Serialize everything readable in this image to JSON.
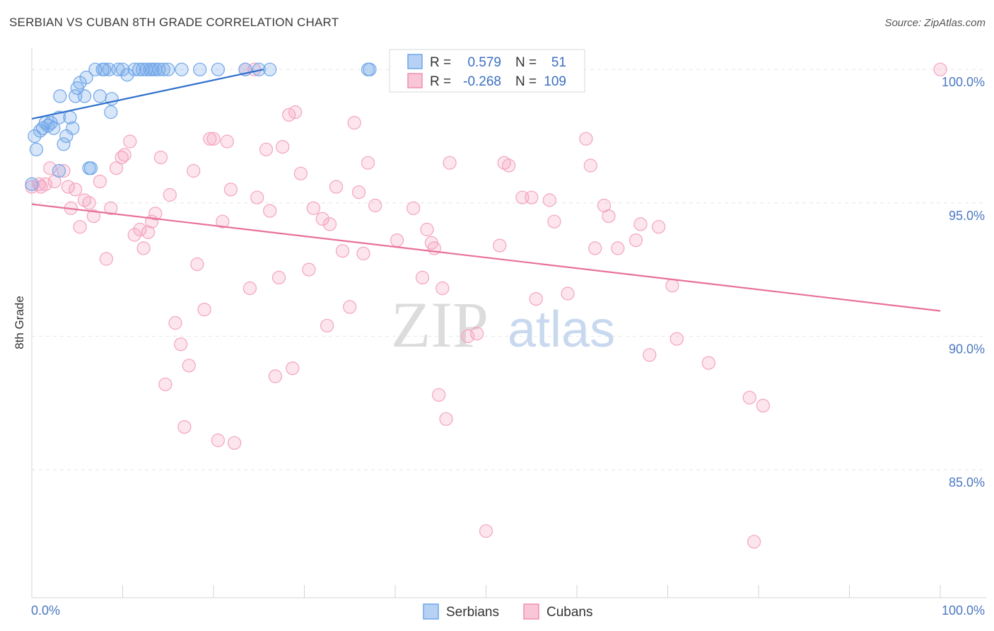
{
  "title": "SERBIAN VS CUBAN 8TH GRADE CORRELATION CHART",
  "source": "Source: ZipAtlas.com",
  "watermark": {
    "zip": "ZIP",
    "atlas": "atlas"
  },
  "legend": {
    "r_label": "R =",
    "n_label": "N =",
    "items": [
      {
        "name": "Serbians",
        "r": "0.579",
        "n": "51",
        "color": "#6fa6e8"
      },
      {
        "name": "Cubans",
        "r": "-0.268",
        "n": "109",
        "color": "#f08fb0"
      }
    ]
  },
  "chart_data": {
    "type": "scatter",
    "title": "SERBIAN VS CUBAN 8TH GRADE CORRELATION CHART",
    "xlabel": "",
    "ylabel": "8th Grade",
    "xlim": [
      0,
      100
    ],
    "ylim": [
      80.2,
      100.8
    ],
    "x_tick_labels": [
      "0.0%",
      "100.0%"
    ],
    "y_ticks": [
      85,
      90,
      95,
      100
    ],
    "y_tick_labels": [
      "85.0%",
      "90.0%",
      "95.0%",
      "100.0%"
    ],
    "grid": true,
    "series": [
      {
        "name": "Serbians",
        "color": "#6fa6e8",
        "line_color": "#2e6fcc",
        "trend": {
          "x": [
            0,
            25.5
          ],
          "y": [
            98.15,
            100.0
          ]
        },
        "points": [
          [
            0.3,
            97.5
          ],
          [
            0.5,
            97.0
          ],
          [
            0.9,
            97.7
          ],
          [
            1.2,
            97.8
          ],
          [
            1.5,
            98.0
          ],
          [
            1.8,
            97.9
          ],
          [
            2.1,
            98.0
          ],
          [
            2.4,
            97.8
          ],
          [
            3.0,
            98.2
          ],
          [
            3.5,
            97.2
          ],
          [
            3.8,
            97.5
          ],
          [
            4.2,
            98.2
          ],
          [
            4.5,
            97.8
          ],
          [
            3.1,
            99.0
          ],
          [
            4.8,
            99.0
          ],
          [
            5.0,
            99.3
          ],
          [
            5.3,
            99.5
          ],
          [
            5.8,
            99.0
          ],
          [
            6.0,
            99.7
          ],
          [
            6.3,
            96.3
          ],
          [
            6.5,
            96.3
          ],
          [
            7.0,
            100.0
          ],
          [
            7.5,
            99.0
          ],
          [
            7.8,
            100.0
          ],
          [
            8.0,
            100.0
          ],
          [
            8.5,
            100.0
          ],
          [
            8.8,
            98.9
          ],
          [
            8.7,
            98.4
          ],
          [
            9.5,
            100.0
          ],
          [
            10.0,
            100.0
          ],
          [
            10.5,
            99.8
          ],
          [
            11.3,
            100.0
          ],
          [
            11.8,
            100.0
          ],
          [
            12.2,
            100.0
          ],
          [
            12.6,
            100.0
          ],
          [
            13.0,
            100.0
          ],
          [
            13.3,
            100.0
          ],
          [
            13.6,
            100.0
          ],
          [
            14.0,
            100.0
          ],
          [
            14.5,
            100.0
          ],
          [
            15.0,
            100.0
          ],
          [
            16.5,
            100.0
          ],
          [
            18.5,
            100.0
          ],
          [
            20.5,
            100.0
          ],
          [
            23.5,
            100.0
          ],
          [
            25.0,
            100.0
          ],
          [
            26.2,
            100.0
          ],
          [
            37.0,
            100.0
          ],
          [
            37.2,
            100.0
          ],
          [
            3.0,
            96.2
          ],
          [
            0.0,
            95.7
          ]
        ]
      },
      {
        "name": "Cubans",
        "color": "#f4a3bf",
        "line_color": "#e8709a",
        "trend": {
          "x": [
            0,
            100
          ],
          "y": [
            94.95,
            90.95
          ]
        },
        "points": [
          [
            0.0,
            95.6
          ],
          [
            0.8,
            95.7
          ],
          [
            1.0,
            95.6
          ],
          [
            1.5,
            95.7
          ],
          [
            2.0,
            96.3
          ],
          [
            2.5,
            95.8
          ],
          [
            3.5,
            96.2
          ],
          [
            4.0,
            95.6
          ],
          [
            4.3,
            94.8
          ],
          [
            4.8,
            95.5
          ],
          [
            5.3,
            94.1
          ],
          [
            5.8,
            95.1
          ],
          [
            6.3,
            95.0
          ],
          [
            6.8,
            94.5
          ],
          [
            7.5,
            95.8
          ],
          [
            8.2,
            92.9
          ],
          [
            8.7,
            94.8
          ],
          [
            9.3,
            96.3
          ],
          [
            9.9,
            96.7
          ],
          [
            10.2,
            96.8
          ],
          [
            10.8,
            97.3
          ],
          [
            11.3,
            93.8
          ],
          [
            11.9,
            94.0
          ],
          [
            12.3,
            93.3
          ],
          [
            12.8,
            93.9
          ],
          [
            13.2,
            94.3
          ],
          [
            13.6,
            94.6
          ],
          [
            14.2,
            96.7
          ],
          [
            14.7,
            88.2
          ],
          [
            15.2,
            95.3
          ],
          [
            15.8,
            90.5
          ],
          [
            16.4,
            89.7
          ],
          [
            16.8,
            86.6
          ],
          [
            17.3,
            88.9
          ],
          [
            17.8,
            96.2
          ],
          [
            18.2,
            92.7
          ],
          [
            19.0,
            91.0
          ],
          [
            19.6,
            97.4
          ],
          [
            20.0,
            97.4
          ],
          [
            20.5,
            86.1
          ],
          [
            21.0,
            94.3
          ],
          [
            21.5,
            97.3
          ],
          [
            21.9,
            95.5
          ],
          [
            22.3,
            86.0
          ],
          [
            23.5,
            100.0
          ],
          [
            24.0,
            91.8
          ],
          [
            24.5,
            100.0
          ],
          [
            24.8,
            95.2
          ],
          [
            25.8,
            97.0
          ],
          [
            26.2,
            94.7
          ],
          [
            26.8,
            88.5
          ],
          [
            27.2,
            92.2
          ],
          [
            27.6,
            97.1
          ],
          [
            28.3,
            98.3
          ],
          [
            28.7,
            88.8
          ],
          [
            29.0,
            98.4
          ],
          [
            29.6,
            96.1
          ],
          [
            30.5,
            92.5
          ],
          [
            31.0,
            94.8
          ],
          [
            32.0,
            94.4
          ],
          [
            32.5,
            90.4
          ],
          [
            32.8,
            94.2
          ],
          [
            33.5,
            95.6
          ],
          [
            34.2,
            93.2
          ],
          [
            35.0,
            91.1
          ],
          [
            35.5,
            98.0
          ],
          [
            36.0,
            95.4
          ],
          [
            36.5,
            93.1
          ],
          [
            37.0,
            96.5
          ],
          [
            37.8,
            94.9
          ],
          [
            40.2,
            93.6
          ],
          [
            42.0,
            94.8
          ],
          [
            43.0,
            92.2
          ],
          [
            43.5,
            94.0
          ],
          [
            44.0,
            93.5
          ],
          [
            44.3,
            93.3
          ],
          [
            44.8,
            87.8
          ],
          [
            45.2,
            91.8
          ],
          [
            45.6,
            86.9
          ],
          [
            46.0,
            96.5
          ],
          [
            48.0,
            90.0
          ],
          [
            49.0,
            90.1
          ],
          [
            50.0,
            82.7
          ],
          [
            51.5,
            93.4
          ],
          [
            52.0,
            96.5
          ],
          [
            52.5,
            96.4
          ],
          [
            54.0,
            95.2
          ],
          [
            55.0,
            95.2
          ],
          [
            55.5,
            91.4
          ],
          [
            57.0,
            95.1
          ],
          [
            57.5,
            94.3
          ],
          [
            59.0,
            91.6
          ],
          [
            61.0,
            97.4
          ],
          [
            61.5,
            96.4
          ],
          [
            62.0,
            93.3
          ],
          [
            63.0,
            94.9
          ],
          [
            63.5,
            94.5
          ],
          [
            64.5,
            93.3
          ],
          [
            66.5,
            93.6
          ],
          [
            67.0,
            94.2
          ],
          [
            68.0,
            89.3
          ],
          [
            69.0,
            94.1
          ],
          [
            70.5,
            91.9
          ],
          [
            71.0,
            89.9
          ],
          [
            74.5,
            89.0
          ],
          [
            79.0,
            87.7
          ],
          [
            80.5,
            87.4
          ],
          [
            79.5,
            82.3
          ],
          [
            100.0,
            100.0
          ]
        ]
      }
    ]
  }
}
